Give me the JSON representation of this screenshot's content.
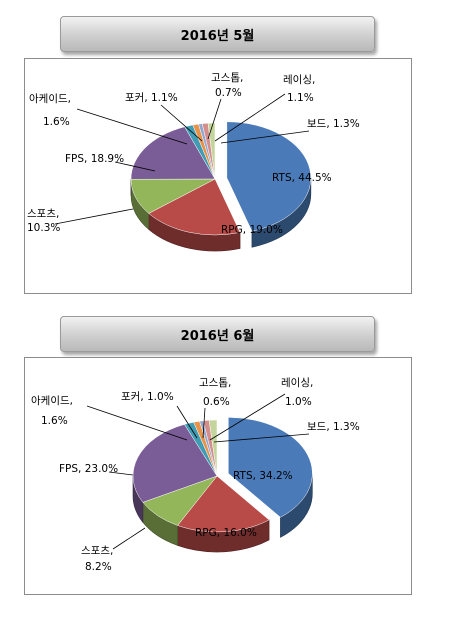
{
  "chart_data": [
    {
      "type": "pie",
      "title": "2016년 5월",
      "series": [
        {
          "values": [
            44.5,
            19.0,
            10.3,
            18.9,
            1.6,
            1.1,
            0.7,
            1.1,
            1.3
          ],
          "labels": [
            "RTS",
            "RPG",
            "스포츠",
            "FPS",
            "아케이드",
            "포커",
            "고스톱",
            "레이싱",
            "보드"
          ]
        }
      ],
      "data_labels": [
        "RTS, 44.5%",
        "RPG, 19.0%",
        "스포츠,\n10.3%",
        "FPS, 18.9%",
        "아케이드,\n1.6%",
        "포커, 1.1%",
        "고스톱,\n0.7%",
        "레이싱,\n1.1%",
        "보드, 1.3%"
      ],
      "colors": [
        "#4a7ab8",
        "#b84a47",
        "#94b65a",
        "#7a5c96",
        "#3f9cb3",
        "#e8934a",
        "#8fa8d2",
        "#d48e8c",
        "#c3d59c"
      ]
    },
    {
      "type": "pie",
      "title": "2016년 6월",
      "series": [
        {
          "values": [
            34.2,
            16.0,
            8.2,
            23.0,
            1.6,
            1.0,
            0.6,
            1.0,
            1.3
          ],
          "labels": [
            "RTS",
            "RPG",
            "스포츠",
            "FPS",
            "아케이드",
            "포커",
            "고스톱",
            "레이싱",
            "보드"
          ]
        }
      ],
      "data_labels": [
        "RTS, 34.2%",
        "RPG, 16.0%",
        "스포츠,\n8.2%",
        "FPS, 23.0%",
        "아케이드,\n1.6%",
        "포커, 1.0%",
        "고스톱,\n0.6%",
        "레이싱,\n1.0%",
        "보드, 1.3%"
      ],
      "colors": [
        "#4a7ab8",
        "#b84a47",
        "#94b65a",
        "#7a5c96",
        "#3f9cb3",
        "#e8934a",
        "#8fa8d2",
        "#d48e8c",
        "#c3d59c"
      ]
    }
  ]
}
